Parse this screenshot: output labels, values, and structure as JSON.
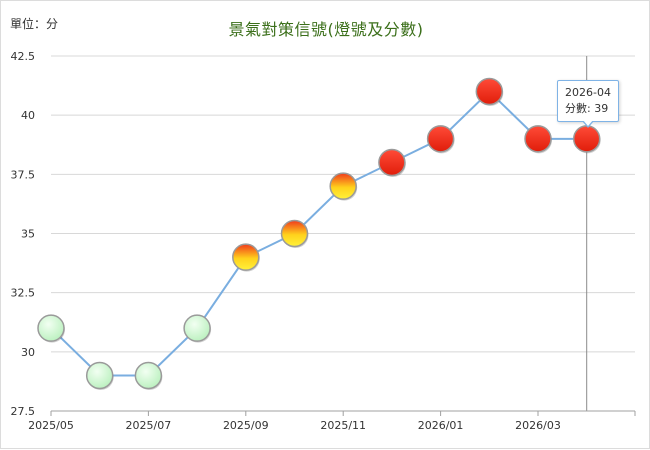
{
  "unit_label": "單位：分",
  "chart_data": {
    "type": "line",
    "title": "景氣對策信號(燈號及分數)",
    "xlabel": "",
    "ylabel": "",
    "x": [
      "2025-05",
      "2025-06",
      "2025-07",
      "2025-08",
      "2025-09",
      "2025-10",
      "2025-11",
      "2025-12",
      "2026-01",
      "2026-02",
      "2026-03",
      "2026-04"
    ],
    "series": [
      {
        "values": [
          31,
          29,
          29,
          31,
          34,
          35,
          37,
          38,
          39,
          41,
          39,
          39
        ]
      }
    ],
    "signal_colors": [
      "green",
      "green",
      "green",
      "green",
      "yellow-red",
      "yellow-red",
      "yellow-red",
      "red",
      "red",
      "red",
      "red",
      "red"
    ],
    "ylim": [
      27.5,
      42.5
    ],
    "y_ticks": [
      "27.5",
      "30",
      "32.5",
      "35",
      "37.5",
      "40",
      "42.5"
    ],
    "x_tick_labels": [
      "2025/05",
      "2025/07",
      "2025/09",
      "2025/11",
      "2026/01",
      "2026/03"
    ],
    "grid": true,
    "line_color": "#7aaee0",
    "tooltip": {
      "title": "2026-04",
      "label": "分數",
      "value": "39"
    }
  }
}
